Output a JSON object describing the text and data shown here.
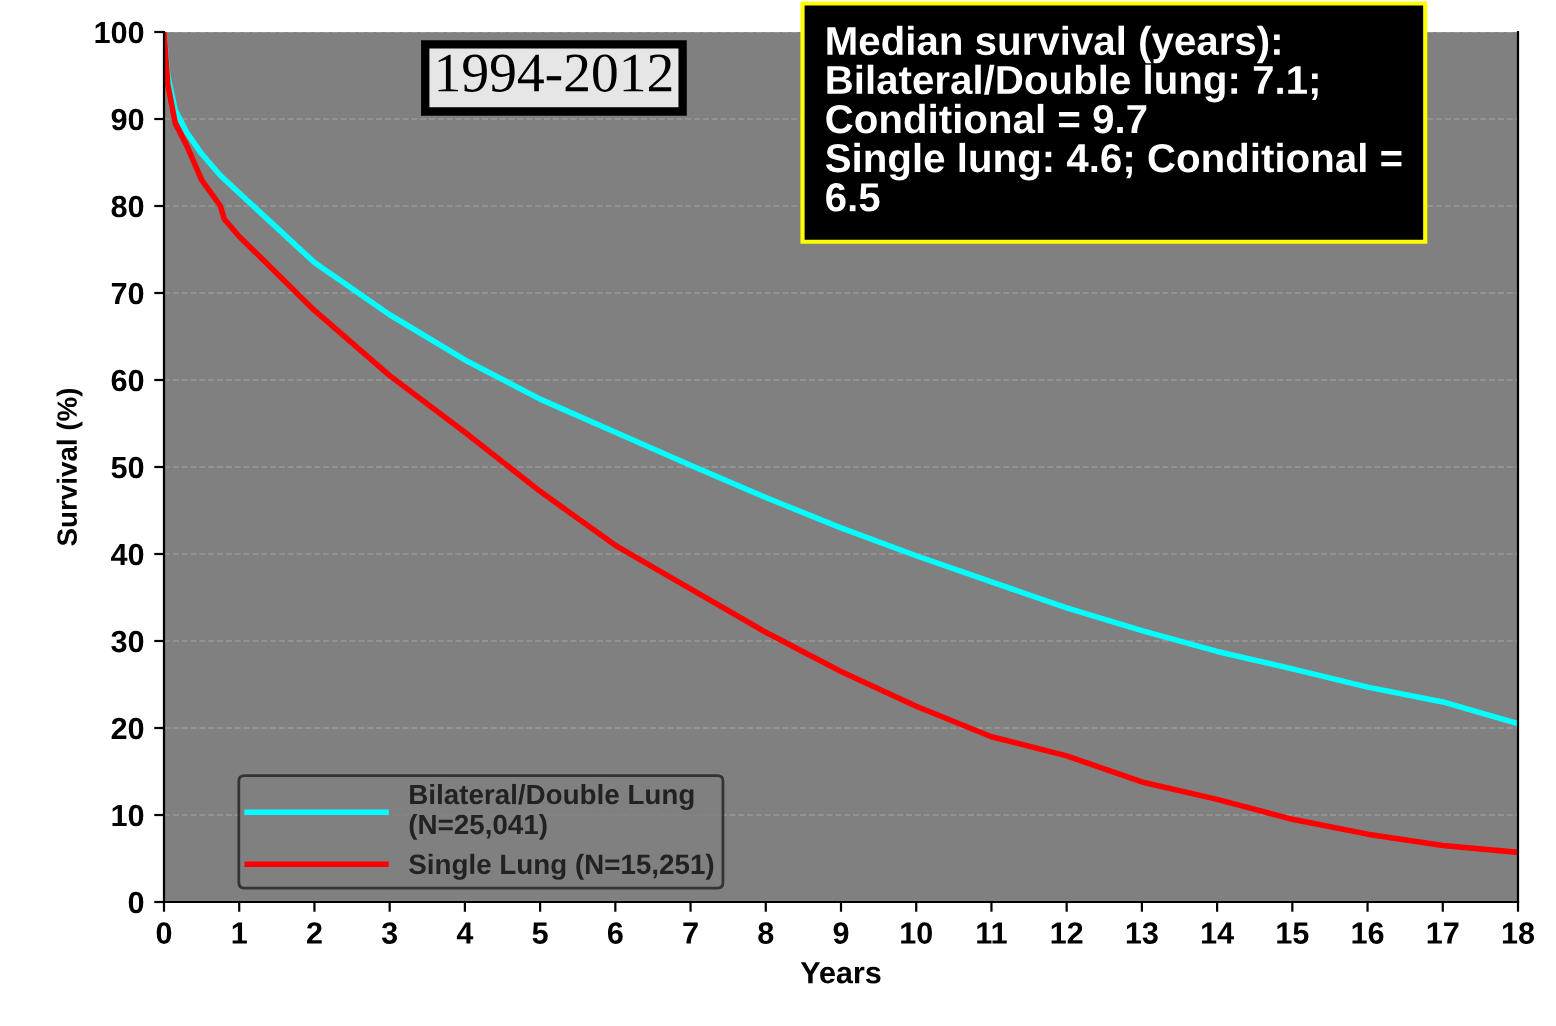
{
  "chart_data": {
    "type": "line",
    "xlabel": "Years",
    "ylabel": "Survival (%)",
    "xlim": [
      0,
      18
    ],
    "xticks": [
      0,
      1,
      2,
      3,
      4,
      5,
      6,
      7,
      8,
      9,
      10,
      11,
      12,
      13,
      14,
      15,
      16,
      17,
      18
    ],
    "ylim": [
      0,
      100
    ],
    "yticks": [
      0,
      10,
      20,
      30,
      40,
      50,
      60,
      70,
      80,
      90,
      100
    ],
    "grid": "y",
    "legend": "bottom left",
    "line_style": "solid",
    "marker": "none",
    "annotations": [
      "1994-2012",
      "Median survival (years):\nBilateral/Double lung: 7.1;\nConditional = 9.7\nSingle lung: 4.6; Conditional =\n6.5"
    ],
    "series": [
      {
        "name": "Bilateral/Double Lung\n(N=25,041)",
        "color": "#00ffff",
        "x": [
          0,
          0.05,
          0.15,
          0.3,
          0.5,
          0.75,
          1,
          2,
          3,
          4,
          5,
          6,
          7,
          8,
          9,
          10,
          11,
          12,
          13,
          14,
          15,
          16,
          17,
          18
        ],
        "values": [
          100,
          95,
          91,
          88.5,
          86,
          83.5,
          81.5,
          73.5,
          67.5,
          62.3,
          57.8,
          54,
          50.2,
          46.5,
          43,
          39.8,
          36.8,
          33.8,
          31.2,
          28.8,
          26.8,
          24.7,
          23,
          20.5
        ]
      },
      {
        "name": "Single Lung (N=15,251)",
        "color": "#ff0000",
        "x": [
          0,
          0.05,
          0.15,
          0.3,
          0.5,
          0.75,
          0.8,
          1,
          2,
          3,
          4,
          5,
          6,
          7,
          8,
          9,
          10,
          11,
          12,
          13,
          14,
          15,
          16,
          17,
          18
        ],
        "values": [
          100,
          94,
          89.5,
          87,
          83,
          80,
          78.5,
          76.5,
          68,
          60.5,
          54,
          47.2,
          41,
          36,
          31,
          26.5,
          22.5,
          19,
          16.8,
          13.8,
          11.8,
          9.5,
          7.8,
          6.5,
          5.7
        ]
      }
    ]
  }
}
